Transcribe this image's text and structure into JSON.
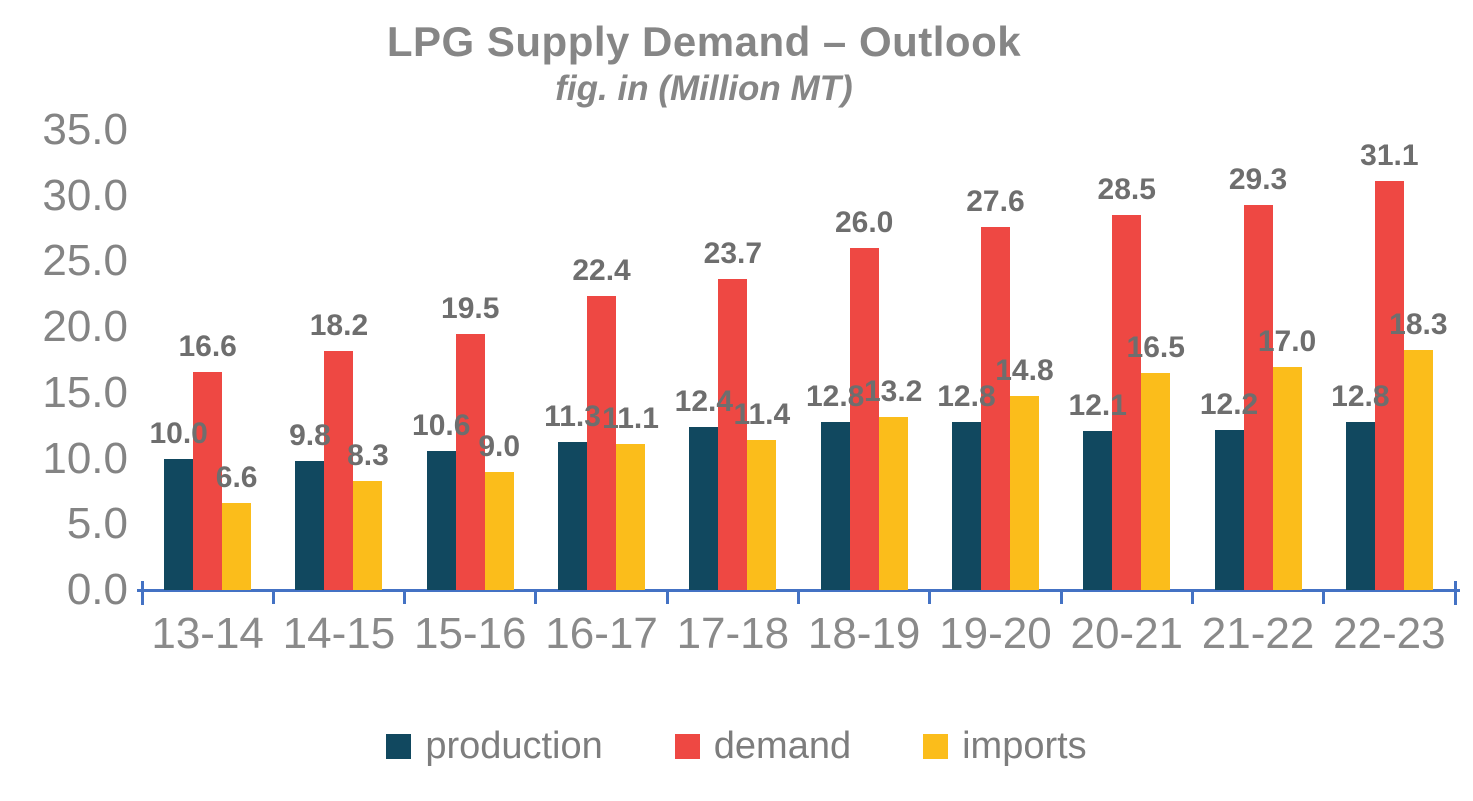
{
  "chart_data": {
    "type": "bar",
    "title": "LPG Supply Demand – Outlook",
    "subtitle": "fig. in (Million MT)",
    "categories": [
      "13-14",
      "14-15",
      "15-16",
      "16-17",
      "17-18",
      "18-19",
      "19-20",
      "20-21",
      "21-22",
      "22-23"
    ],
    "series": [
      {
        "name": "production",
        "color": "#11485f",
        "values": [
          10.0,
          9.8,
          10.6,
          11.3,
          12.4,
          12.8,
          12.8,
          12.1,
          12.2,
          12.8
        ]
      },
      {
        "name": "demand",
        "color": "#ee4843",
        "values": [
          16.6,
          18.2,
          19.5,
          22.4,
          23.7,
          26.0,
          27.6,
          28.5,
          29.3,
          31.1
        ]
      },
      {
        "name": "imports",
        "color": "#fbbd1b",
        "values": [
          6.6,
          8.3,
          9.0,
          11.1,
          11.4,
          13.2,
          14.8,
          16.5,
          17.0,
          18.3
        ]
      }
    ],
    "ylim": [
      0,
      35
    ],
    "ytick_step": 5,
    "ytick_labels": [
      "0.0",
      "5.0",
      "10.0",
      "15.0",
      "20.0",
      "25.0",
      "30.0",
      "35.0"
    ],
    "value_label_decimals": 1,
    "grid": false,
    "legend_position": "bottom",
    "axis_color": "#4472c4",
    "text_color": "#848484",
    "value_label_color": "#6e6e6e"
  }
}
